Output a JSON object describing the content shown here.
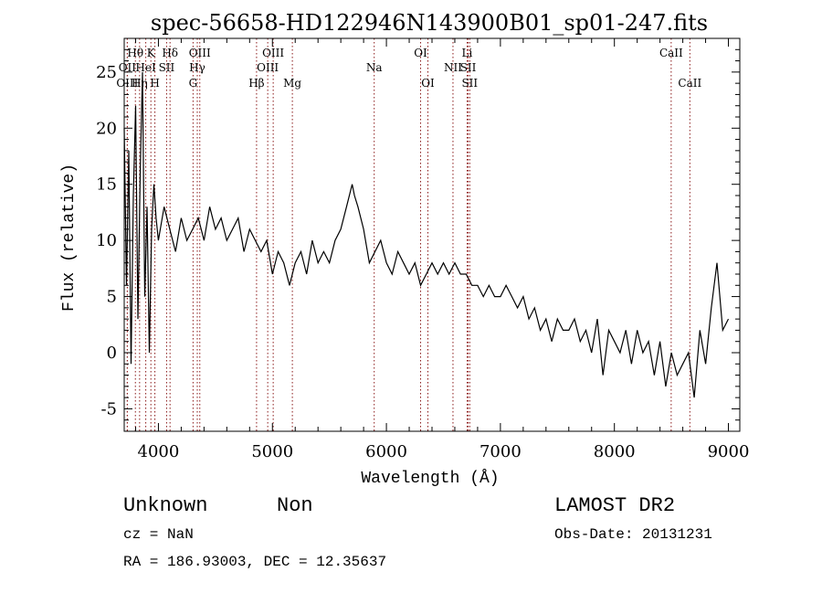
{
  "chart_data": {
    "type": "line",
    "title": "spec-56658-HD122946N143900B01_sp01-247.fits",
    "xlabel": "Wavelength (Å)",
    "ylabel": "Flux (relative)",
    "xlim": [
      3700,
      9100
    ],
    "ylim": [
      -7,
      28
    ],
    "xticks": [
      4000,
      5000,
      6000,
      7000,
      8000,
      9000
    ],
    "yticks": [
      -5,
      0,
      5,
      10,
      15,
      20,
      25
    ],
    "grid": false,
    "line_color": "#000000",
    "marker_color": "#8b1a1a",
    "series": [
      {
        "x": [
          3700,
          3720,
          3740,
          3760,
          3780,
          3800,
          3820,
          3840,
          3860,
          3880,
          3900,
          3920,
          3940,
          3960,
          3980,
          4000,
          4050,
          4100,
          4150,
          4200,
          4250,
          4300,
          4350,
          4400,
          4450,
          4500,
          4550,
          4600,
          4650,
          4700,
          4750,
          4800,
          4850,
          4900,
          4950,
          5000,
          5050,
          5100,
          5150,
          5200,
          5250,
          5300,
          5350,
          5400,
          5450,
          5500,
          5550,
          5600,
          5650,
          5700,
          5720,
          5750,
          5800,
          5850,
          5900,
          5950,
          6000,
          6050,
          6100,
          6150,
          6200,
          6250,
          6300,
          6350,
          6400,
          6450,
          6500,
          6550,
          6600,
          6650,
          6700,
          6750,
          6800,
          6850,
          6900,
          6950,
          7000,
          7050,
          7100,
          7150,
          7200,
          7250,
          7300,
          7350,
          7400,
          7450,
          7500,
          7550,
          7600,
          7650,
          7700,
          7750,
          7800,
          7850,
          7900,
          7950,
          8000,
          8050,
          8100,
          8150,
          8200,
          8250,
          8300,
          8350,
          8400,
          8450,
          8500,
          8550,
          8600,
          8650,
          8700,
          8750,
          8800,
          8850,
          8900,
          8950,
          9000
        ],
        "y": [
          20,
          6,
          18,
          -1,
          14,
          22,
          3,
          16,
          25,
          5,
          13,
          0,
          11,
          15,
          12,
          10,
          13,
          11,
          9,
          12,
          10,
          11,
          12,
          10,
          13,
          11,
          12,
          10,
          11,
          12,
          9,
          11,
          10,
          9,
          10,
          7,
          9,
          8,
          6,
          8,
          9,
          7,
          10,
          8,
          9,
          8,
          10,
          11,
          13,
          15,
          14,
          13,
          11,
          8,
          9,
          10,
          8,
          7,
          9,
          8,
          7,
          8,
          6,
          7,
          8,
          7,
          8,
          7,
          8,
          7,
          7,
          6,
          6,
          5,
          6,
          5,
          5,
          6,
          5,
          4,
          5,
          3,
          4,
          2,
          3,
          1,
          3,
          2,
          2,
          3,
          1,
          2,
          0,
          3,
          -2,
          2,
          1,
          0,
          2,
          -1,
          2,
          0,
          1,
          -2,
          1,
          -3,
          0,
          -2,
          -1,
          0,
          -4,
          2,
          -1,
          4,
          8,
          2,
          3
        ]
      }
    ],
    "lines": [
      {
        "name": "Hθ",
        "x": 3798,
        "row": 1
      },
      {
        "name": "K",
        "x": 3934,
        "row": 1
      },
      {
        "name": "Hδ",
        "x": 4102,
        "row": 1
      },
      {
        "name": "OIII",
        "x": 4363,
        "row": 1
      },
      {
        "name": "OIII",
        "x": 5007,
        "row": 1
      },
      {
        "name": "OI",
        "x": 6300,
        "row": 1
      },
      {
        "name": "Li",
        "x": 6708,
        "row": 1
      },
      {
        "name": "CaII",
        "x": 8498,
        "row": 1
      },
      {
        "name": "OII",
        "x": 3727,
        "row": 2
      },
      {
        "name": "HeI",
        "x": 3889,
        "row": 2
      },
      {
        "name": "SII",
        "x": 4072,
        "row": 2
      },
      {
        "name": "Hγ",
        "x": 4341,
        "row": 2
      },
      {
        "name": "OIII",
        "x": 4959,
        "row": 2
      },
      {
        "name": "Na",
        "x": 5893,
        "row": 2
      },
      {
        "name": "NII",
        "x": 6584,
        "row": 2
      },
      {
        "name": "SII",
        "x": 6717,
        "row": 2
      },
      {
        "name": "OIII",
        "x": 3727,
        "row": 3
      },
      {
        "name": "Hη",
        "x": 3835,
        "row": 3
      },
      {
        "name": "H",
        "x": 3969,
        "row": 3
      },
      {
        "name": "G",
        "x": 4304,
        "row": 3
      },
      {
        "name": "Hβ",
        "x": 4861,
        "row": 3
      },
      {
        "name": "Mg",
        "x": 5175,
        "row": 3
      },
      {
        "name": "OI",
        "x": 6364,
        "row": 3
      },
      {
        "name": "SII",
        "x": 6731,
        "row": 3
      },
      {
        "name": "CaII",
        "x": 8662,
        "row": 3
      }
    ]
  },
  "info": {
    "object_type": "Unknown",
    "object_subtype": "Non",
    "cz": "cz = NaN",
    "radec": "RA = 186.93003, DEC =  12.35637",
    "survey": "LAMOST DR2",
    "obs_date": "Obs-Date: 20131231"
  }
}
